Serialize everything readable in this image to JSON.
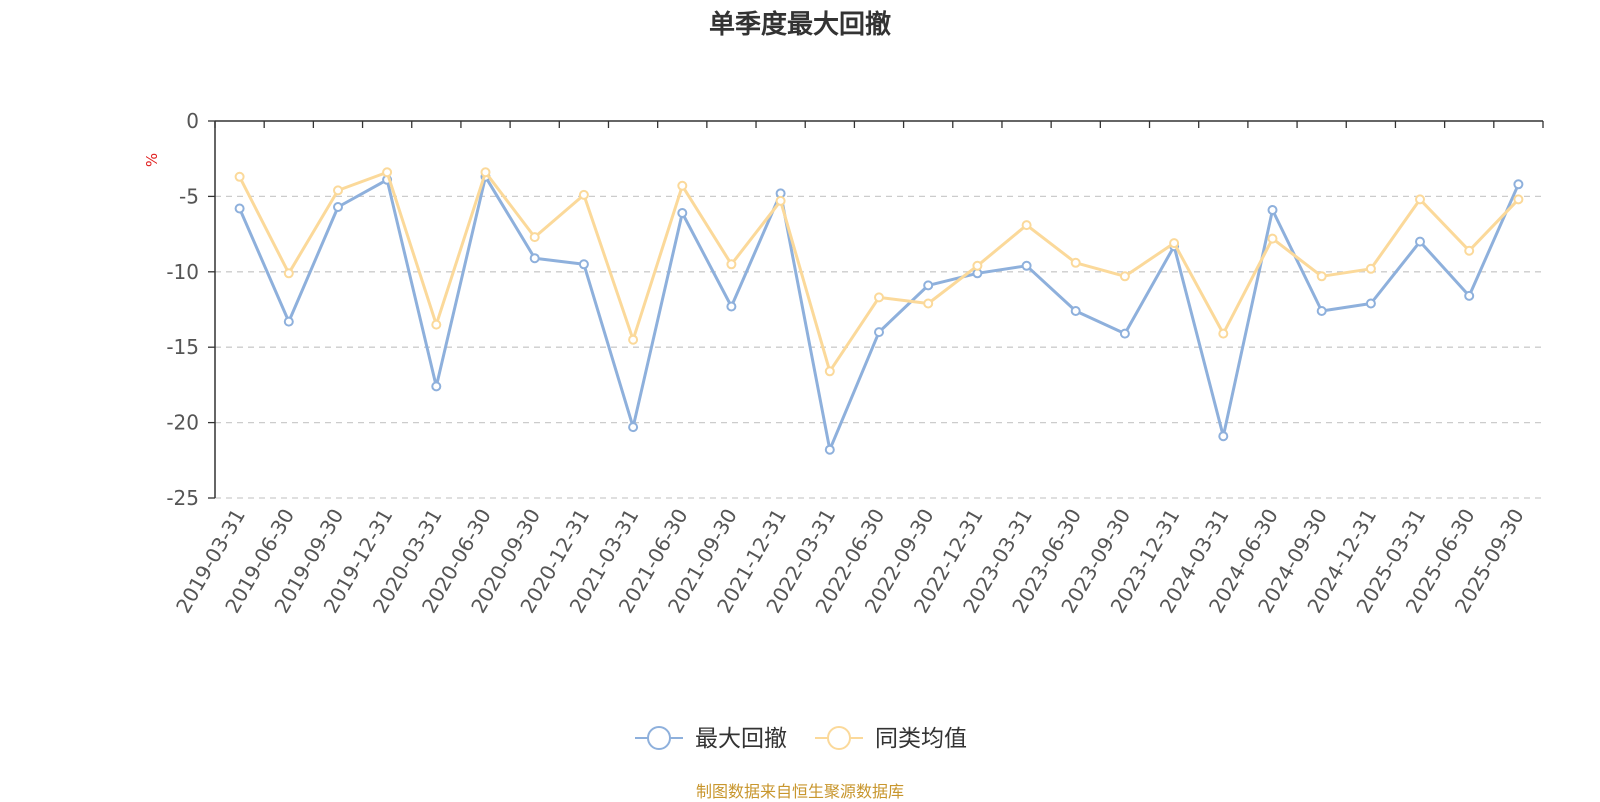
{
  "chart_data": {
    "type": "line",
    "title": "单季度最大回撤",
    "ylabel": "%",
    "ylim": [
      -25,
      0
    ],
    "yticks": [
      0,
      -5,
      -10,
      -15,
      -20,
      -25
    ],
    "grid": "horizontal dashed",
    "legend_position": "bottom-center",
    "categories": [
      "2019-03-31",
      "2019-06-30",
      "2019-09-30",
      "2019-12-31",
      "2020-03-31",
      "2020-06-30",
      "2020-09-30",
      "2020-12-31",
      "2021-03-31",
      "2021-06-30",
      "2021-09-30",
      "2021-12-31",
      "2022-03-31",
      "2022-06-30",
      "2022-09-30",
      "2022-12-31",
      "2023-03-31",
      "2023-06-30",
      "2023-09-30",
      "2023-12-31",
      "2024-03-31",
      "2024-06-30",
      "2024-09-30",
      "2024-12-31",
      "2025-03-31",
      "2025-06-30",
      "2025-09-30"
    ],
    "series": [
      {
        "name": "最大回撤",
        "color": "#8eb0dc",
        "values": [
          -5.8,
          -13.3,
          -5.7,
          -3.9,
          -17.6,
          -3.7,
          -9.1,
          -9.5,
          -20.3,
          -6.1,
          -12.3,
          -4.8,
          -21.8,
          -14.0,
          -10.9,
          -10.1,
          -9.6,
          -12.6,
          -14.1,
          -8.3,
          -20.9,
          -5.9,
          -12.6,
          -12.1,
          -8.0,
          -11.6,
          -4.2
        ]
      },
      {
        "name": "同类均值",
        "color": "#fbd99a",
        "values": [
          -3.7,
          -10.1,
          -4.6,
          -3.4,
          -13.5,
          -3.4,
          -7.7,
          -4.9,
          -14.5,
          -4.3,
          -9.5,
          -5.3,
          -16.6,
          -11.7,
          -12.1,
          -9.6,
          -6.9,
          -9.4,
          -10.3,
          -8.1,
          -14.1,
          -7.8,
          -10.3,
          -9.8,
          -5.2,
          -8.6,
          -5.2
        ]
      }
    ]
  },
  "source_note": "制图数据来自恒生聚源数据库",
  "colors": {
    "axis": "#333333",
    "grid": "#cccccc",
    "ylabel": "#e02020",
    "tick_text": "#555555"
  }
}
